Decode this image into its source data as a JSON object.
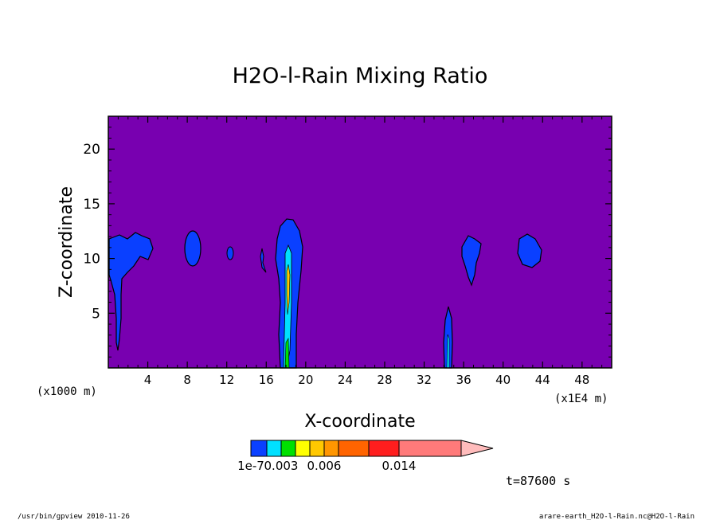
{
  "chart_data": {
    "type": "heatmap",
    "title": "H2O-l-Rain Mixing Ratio",
    "xlabel": "X-coordinate",
    "ylabel": "Z-coordinate",
    "x_ticks": [
      4,
      8,
      12,
      16,
      20,
      24,
      28,
      32,
      36,
      40,
      44,
      48
    ],
    "x_range": [
      0,
      51
    ],
    "x_unit": "(x1E4 m)",
    "y_ticks": [
      5,
      10,
      15,
      20
    ],
    "y_range": [
      0,
      23
    ],
    "y_unit": "(x1000 m)",
    "background_level": "below 1e-7",
    "colorbar": {
      "levels": [
        1e-07,
        0.002,
        0.003,
        0.004,
        0.005,
        0.006,
        0.008,
        0.01,
        0.014
      ],
      "labels": [
        "1e-7",
        "0.003",
        "0.006",
        "0.014"
      ],
      "colors": [
        "#0a40ff",
        "#00e0ff",
        "#00e000",
        "#ffff00",
        "#ffc800",
        "#ff9600",
        "#ff6400",
        "#ff1e1e",
        "#ff7a7a",
        "#ffbcbc"
      ]
    },
    "time_label": "t=87600 s"
  },
  "colors": {
    "background_field": "#7800b0",
    "cloud": "#0a40ff",
    "contour": "#000000"
  },
  "footer": {
    "left": "/usr/bin/gpview   2010-11-26",
    "right": "arare-earth_H2O-l-Rain.nc@H2O-l-Rain"
  }
}
